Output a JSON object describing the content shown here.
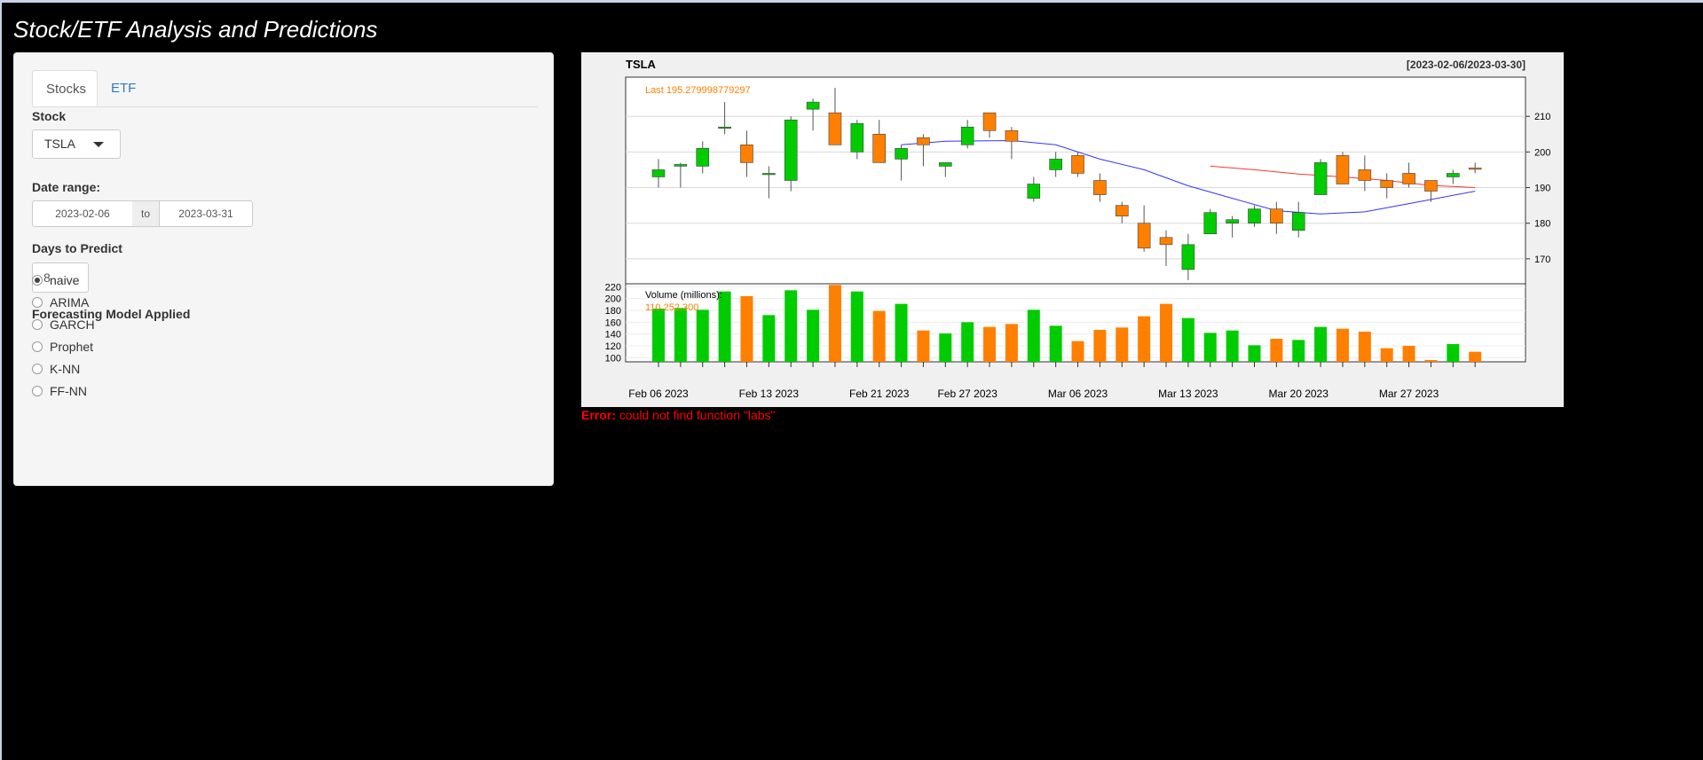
{
  "app": {
    "title": "Stock/ETF Analysis and Predictions"
  },
  "tabs": [
    {
      "label": "Stocks",
      "active": true
    },
    {
      "label": "ETF",
      "active": false
    }
  ],
  "form": {
    "stock_label": "Stock",
    "stock_value": "TSLA",
    "date_range_label": "Date range:",
    "date_from": "2023-02-06",
    "date_sep": "to",
    "date_to": "2023-03-31",
    "days_label": "Days to Predict",
    "days_value": "8",
    "model_label": "Forecasting Model Applied",
    "models": [
      {
        "label": "naive",
        "checked": true
      },
      {
        "label": "ARIMA",
        "checked": false
      },
      {
        "label": "GARCH",
        "checked": false
      },
      {
        "label": "Prophet",
        "checked": false
      },
      {
        "label": "K-NN",
        "checked": false
      },
      {
        "label": "FF-NN",
        "checked": false
      }
    ]
  },
  "error": {
    "prefix": "Error:",
    "message": "could not find function \"labs\""
  },
  "chart_data": {
    "type": "candlestick",
    "title": "TSLA",
    "range_label": "[2023-02-06/2023-03-30]",
    "last_label": "Last 195.279998779297",
    "volume_label": "Volume (millions):",
    "volume_last_label": "110,252,300",
    "price_ylim": [
      163,
      221
    ],
    "price_ticks": [
      170,
      180,
      190,
      200,
      210
    ],
    "volume_ylim": [
      93,
      225
    ],
    "volume_ticks": [
      100,
      120,
      140,
      160,
      180,
      200,
      220
    ],
    "x_tick_labels": [
      "Feb 06 2023",
      "Feb 13 2023",
      "Feb 21 2023",
      "Feb 27 2023",
      "Mar 06 2023",
      "Mar 13 2023",
      "Mar 20 2023",
      "Mar 27 2023"
    ],
    "x_tick_index": [
      0,
      5,
      10,
      14,
      19,
      24,
      29,
      34
    ],
    "colors": {
      "up": "#00cc00",
      "down": "#ff7f00",
      "bg": "#ffffff",
      "grid": "#d8d8d8",
      "ma_blue": "#3333ff",
      "ma_red": "#ff3333",
      "label": "#ff7f00"
    },
    "candles": [
      {
        "date": "2023-02-06",
        "o": 193,
        "h": 198,
        "l": 190,
        "c": 195
      },
      {
        "date": "2023-02-07",
        "o": 196,
        "h": 197,
        "l": 190,
        "c": 196.5
      },
      {
        "date": "2023-02-08",
        "o": 196,
        "h": 203,
        "l": 194,
        "c": 201
      },
      {
        "date": "2023-02-09",
        "o": 207,
        "h": 214,
        "l": 205,
        "c": 207
      },
      {
        "date": "2023-02-10",
        "o": 202,
        "h": 206,
        "l": 193,
        "c": 197
      },
      {
        "date": "2023-02-13",
        "o": 194,
        "h": 196,
        "l": 187,
        "c": 194
      },
      {
        "date": "2023-02-14",
        "o": 192,
        "h": 210,
        "l": 189,
        "c": 209
      },
      {
        "date": "2023-02-15",
        "o": 212,
        "h": 215,
        "l": 206,
        "c": 214
      },
      {
        "date": "2023-02-16",
        "o": 211,
        "h": 218,
        "l": 202,
        "c": 202
      },
      {
        "date": "2023-02-17",
        "o": 200,
        "h": 209,
        "l": 198,
        "c": 208
      },
      {
        "date": "2023-02-21",
        "o": 205,
        "h": 209,
        "l": 197,
        "c": 197
      },
      {
        "date": "2023-02-22",
        "o": 198,
        "h": 202,
        "l": 192,
        "c": 201
      },
      {
        "date": "2023-02-23",
        "o": 204,
        "h": 205,
        "l": 196,
        "c": 202
      },
      {
        "date": "2023-02-24",
        "o": 196,
        "h": 197,
        "l": 193,
        "c": 197
      },
      {
        "date": "2023-02-27",
        "o": 202,
        "h": 209,
        "l": 201,
        "c": 207
      },
      {
        "date": "2023-02-28",
        "o": 211,
        "h": 211,
        "l": 204,
        "c": 206
      },
      {
        "date": "2023-03-01",
        "o": 206,
        "h": 207,
        "l": 198,
        "c": 203
      },
      {
        "date": "2023-03-02",
        "o": 187,
        "h": 193,
        "l": 186,
        "c": 191
      },
      {
        "date": "2023-03-03",
        "o": 195,
        "h": 200,
        "l": 193,
        "c": 198
      },
      {
        "date": "2023-03-06",
        "o": 199,
        "h": 200,
        "l": 193,
        "c": 194
      },
      {
        "date": "2023-03-07",
        "o": 192,
        "h": 194,
        "l": 186,
        "c": 188
      },
      {
        "date": "2023-03-08",
        "o": 185,
        "h": 186,
        "l": 180,
        "c": 182
      },
      {
        "date": "2023-03-09",
        "o": 180,
        "h": 185,
        "l": 172,
        "c": 173
      },
      {
        "date": "2023-03-10",
        "o": 176,
        "h": 178,
        "l": 168,
        "c": 174
      },
      {
        "date": "2023-03-13",
        "o": 167,
        "h": 177,
        "l": 164,
        "c": 174
      },
      {
        "date": "2023-03-14",
        "o": 177,
        "h": 184,
        "l": 177,
        "c": 183
      },
      {
        "date": "2023-03-15",
        "o": 180,
        "h": 182,
        "l": 176,
        "c": 181
      },
      {
        "date": "2023-03-16",
        "o": 180,
        "h": 185,
        "l": 179,
        "c": 184
      },
      {
        "date": "2023-03-17",
        "o": 184,
        "h": 186,
        "l": 177,
        "c": 180
      },
      {
        "date": "2023-03-20",
        "o": 178,
        "h": 186,
        "l": 176,
        "c": 183
      },
      {
        "date": "2023-03-21",
        "o": 188,
        "h": 198,
        "l": 188,
        "c": 197
      },
      {
        "date": "2023-03-22",
        "o": 199,
        "h": 200,
        "l": 191,
        "c": 191
      },
      {
        "date": "2023-03-23",
        "o": 195,
        "h": 199,
        "l": 189,
        "c": 192
      },
      {
        "date": "2023-03-24",
        "o": 192,
        "h": 194,
        "l": 187,
        "c": 190
      },
      {
        "date": "2023-03-27",
        "o": 194,
        "h": 197,
        "l": 190,
        "c": 191
      },
      {
        "date": "2023-03-28",
        "o": 192,
        "h": 192,
        "l": 186,
        "c": 189
      },
      {
        "date": "2023-03-29",
        "o": 193,
        "h": 195,
        "l": 191,
        "c": 194
      },
      {
        "date": "2023-03-30",
        "o": 195.5,
        "h": 197,
        "l": 194,
        "c": 195.3
      }
    ],
    "volumes": [
      183,
      184,
      181,
      212,
      204,
      172,
      214,
      181,
      223,
      212,
      179,
      191,
      146,
      141,
      160,
      152,
      157,
      181,
      154,
      128,
      147,
      151,
      170,
      191,
      167,
      142,
      146,
      121,
      132,
      130,
      152,
      149,
      144,
      116,
      120,
      96,
      123,
      110
    ],
    "ma_blue": [
      {
        "i": 11,
        "v": 202
      },
      {
        "i": 13,
        "v": 203
      },
      {
        "i": 16,
        "v": 203.2
      },
      {
        "i": 18,
        "v": 202
      },
      {
        "i": 20,
        "v": 198
      },
      {
        "i": 22,
        "v": 195
      },
      {
        "i": 24,
        "v": 190.5
      },
      {
        "i": 26,
        "v": 187
      },
      {
        "i": 28,
        "v": 183.5
      },
      {
        "i": 30,
        "v": 182.6
      },
      {
        "i": 32,
        "v": 183.2
      },
      {
        "i": 34,
        "v": 185.5
      },
      {
        "i": 37,
        "v": 189
      }
    ],
    "ma_red": [
      {
        "i": 25,
        "v": 196
      },
      {
        "i": 27,
        "v": 195
      },
      {
        "i": 29,
        "v": 193.8
      },
      {
        "i": 31,
        "v": 193
      },
      {
        "i": 33,
        "v": 192
      },
      {
        "i": 35,
        "v": 190.6
      },
      {
        "i": 37,
        "v": 190
      }
    ]
  }
}
